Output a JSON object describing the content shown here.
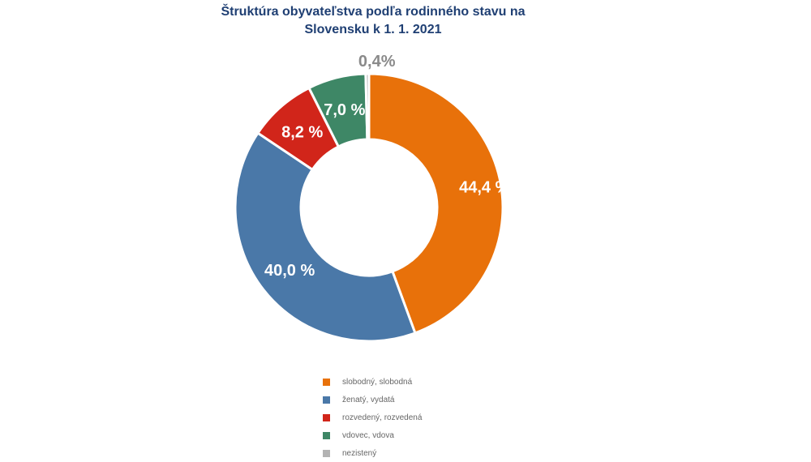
{
  "chart_data": {
    "type": "pie",
    "variant": "donut",
    "title": "Štruktúra obyvateľstva podľa rodinného stavu na Slovensku k 1. 1. 2021",
    "categories": [
      "slobodný, slobodná",
      "ženatý, vydatá",
      "rozvedený, rozvedená",
      "vdovec, vdova",
      "nezistený"
    ],
    "values": [
      44.4,
      40.0,
      8.2,
      7.0,
      0.4
    ],
    "labels": [
      "44,4 %",
      "40,0 %",
      "8,2 %",
      "7,0 %",
      "0,4%"
    ],
    "colors": [
      "#e8710a",
      "#4a78a8",
      "#d1251a",
      "#3e8766",
      "#b3b3b3"
    ],
    "legend_position": "bottom"
  }
}
